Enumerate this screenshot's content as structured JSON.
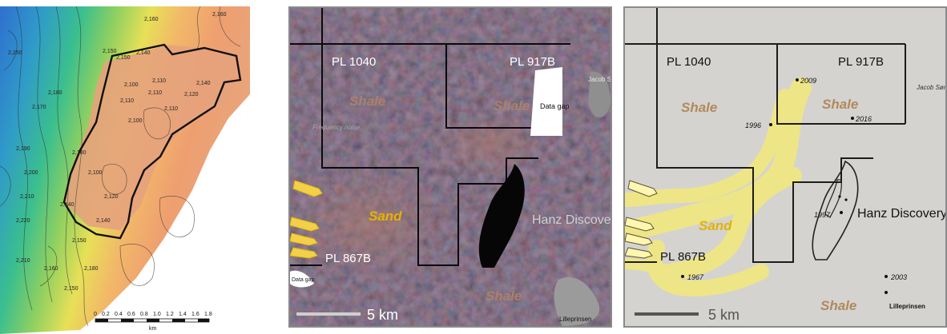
{
  "contour_map": {
    "contour_labels": [
      "2,160",
      "2,160",
      "2,150",
      "2,150",
      "2,140",
      "2,110",
      "2,100",
      "2,110",
      "2,110",
      "2,100",
      "2,110",
      "2,120",
      "2,140",
      "2,170",
      "2,180",
      "2,190",
      "2,200",
      "2,210",
      "2,220",
      "2,180",
      "2,100",
      "2,120",
      "2,140",
      "2,140",
      "2,150",
      "2,180",
      "2,160",
      "2,210",
      "2,150",
      "2,250"
    ],
    "scale_ticks": [
      "0",
      "0.2",
      "0.4",
      "0.6",
      "0.8",
      "1.0",
      "1.2",
      "1.4",
      "1.6",
      "1.8"
    ],
    "scale_unit": "km"
  },
  "seismic_map": {
    "licence_1": "PL 1040",
    "licence_2": "PL 917B",
    "licence_3": "PL 867B",
    "shale_label": "Shale",
    "sand_label": "Sand",
    "data_gap": "Data gap",
    "data_gap_small": "Data gap",
    "frequency_noise": "Frequency noise",
    "discovery": "Hanz Discovery",
    "jacob": "Jacob Sør",
    "lilleprinsen": "Lilleprinsen",
    "scale_label": "5 km"
  },
  "interpretation_map": {
    "licence_1": "PL 1040",
    "licence_2": "PL 917B",
    "licence_3": "PL 867B",
    "shale_label": "Shale",
    "sand_label": "Sand",
    "discovery": "Hanz Discovery",
    "jacob": "Jacob Sør",
    "lilleprinsen": "Lilleprinsen",
    "wells": [
      "2009",
      "1996",
      "2016",
      "1997",
      "1967",
      "2003"
    ],
    "scale_label": "5 km",
    "colors": {
      "sand": "#f3e97a",
      "shale_text": "#b08a5e",
      "sand_text": "#e3b300"
    }
  }
}
